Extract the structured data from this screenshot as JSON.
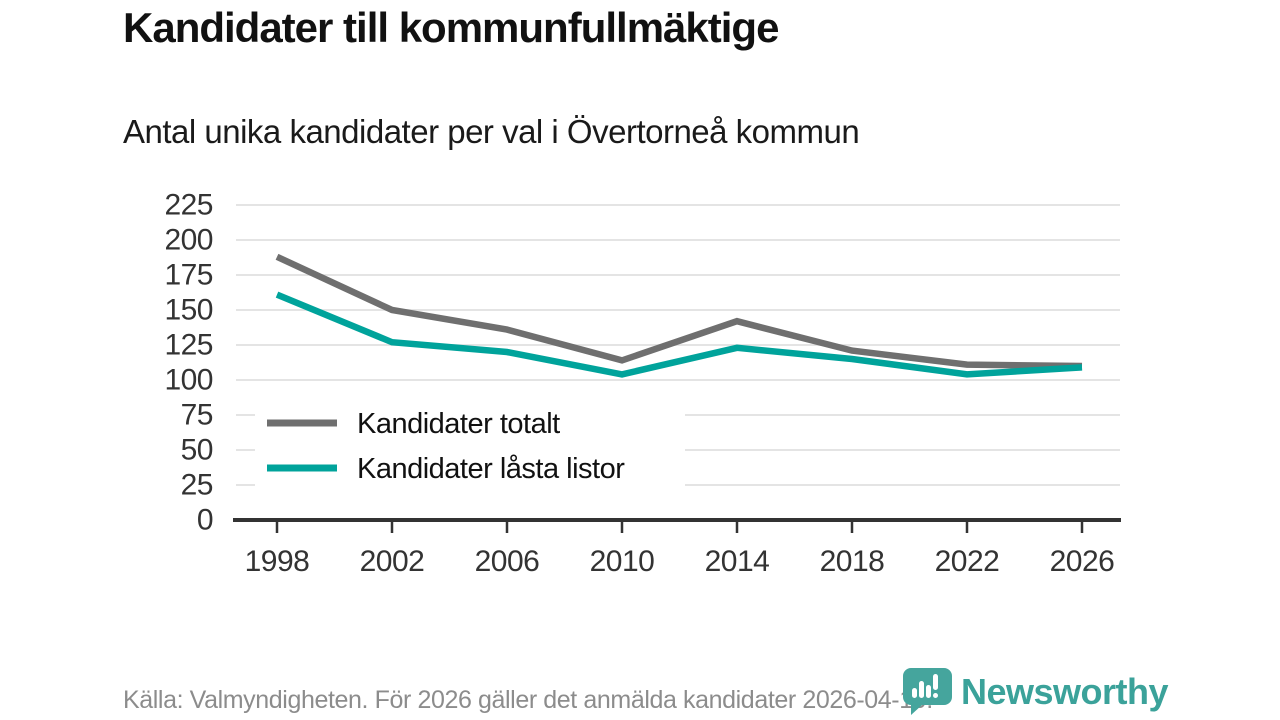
{
  "header": {
    "title": "Kandidater till kommunfullmäktige",
    "subtitle": "Antal unika kandidater per val i Övertorneå kommun"
  },
  "chart_data": {
    "type": "line",
    "title": "Kandidater till kommunfullmäktige",
    "subtitle": "Antal unika kandidater per val i Övertorneå kommun",
    "categories": [
      1998,
      2002,
      2006,
      2010,
      2014,
      2018,
      2022,
      2026
    ],
    "series": [
      {
        "name": "Kandidater totalt",
        "color": "#6f6f6f",
        "values": [
          188,
          150,
          136,
          114,
          142,
          121,
          111,
          110
        ]
      },
      {
        "name": "Kandidater låsta listor",
        "color": "#00a39b",
        "values": [
          161,
          127,
          120,
          104,
          123,
          115,
          104,
          109
        ]
      }
    ],
    "xlabel": "",
    "ylabel": "",
    "ylim": [
      0,
      225
    ],
    "y_ticks": [
      0,
      25,
      50,
      75,
      100,
      125,
      150,
      175,
      200,
      225
    ],
    "grid": "horizontal",
    "legend_position": "inside-bottom-left"
  },
  "footer": {
    "source": "Källa: Valmyndigheten. För 2026 gäller det anmälda kandidater 2026-04-10.",
    "brand": "Newsworthy"
  },
  "colors": {
    "series_total": "#6f6f6f",
    "series_locked_lists": "#00a39b",
    "brand_teal": "#3ba29a",
    "axis": "#333333",
    "gridline": "#e0e0e0"
  }
}
